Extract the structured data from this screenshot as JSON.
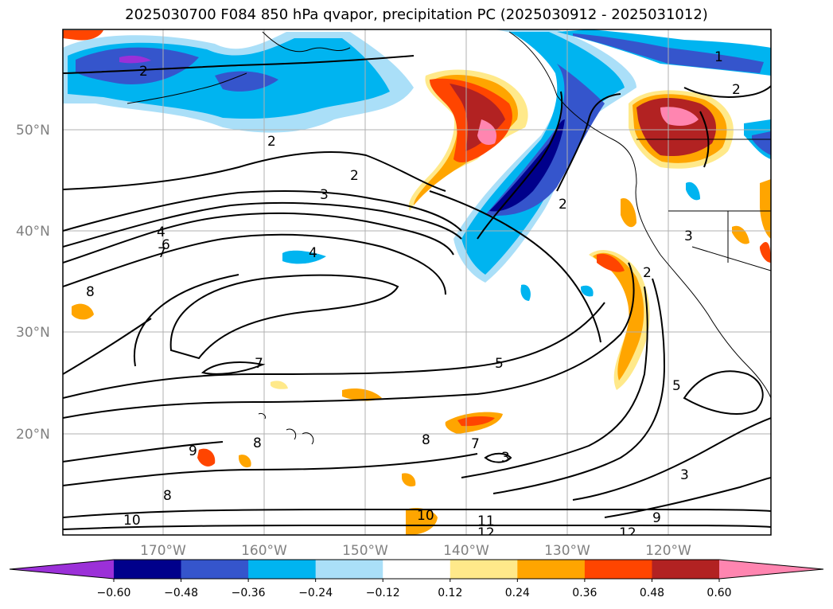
{
  "title": "2025030700 F084 850 hPa qvapor, precipitation PC (2025030912 - 2025031012)",
  "lat_ticks": [
    "50°N",
    "40°N",
    "30°N",
    "20°N"
  ],
  "lon_ticks": [
    "170°W",
    "160°W",
    "150°W",
    "140°W",
    "130°W",
    "120°W"
  ],
  "colorbar": {
    "colors": [
      "#9b30d8",
      "#00008b",
      "#3555cc",
      "#00b4f0",
      "#aadff8",
      "#ffffff",
      "#ffe98a",
      "#ffa500",
      "#ff4500",
      "#b22222",
      "#ff85b0"
    ],
    "labels": [
      "−0.60",
      "−0.48",
      "−0.36",
      "−0.24",
      "−0.12",
      "0.12",
      "0.24",
      "0.36",
      "0.48",
      "0.60"
    ]
  },
  "contour_labels": [
    "1",
    "2",
    "2",
    "2",
    "2",
    "2",
    "2",
    "3",
    "3",
    "3",
    "3",
    "4",
    "4",
    "6",
    "7",
    "7",
    "7",
    "5",
    "5",
    "8",
    "8",
    "8",
    "8",
    "9",
    "9",
    "10",
    "10",
    "11",
    "12",
    "12"
  ],
  "colors": {
    "axes": "#000000",
    "grid": "#b0b0b0",
    "tick_label": "#808080"
  }
}
